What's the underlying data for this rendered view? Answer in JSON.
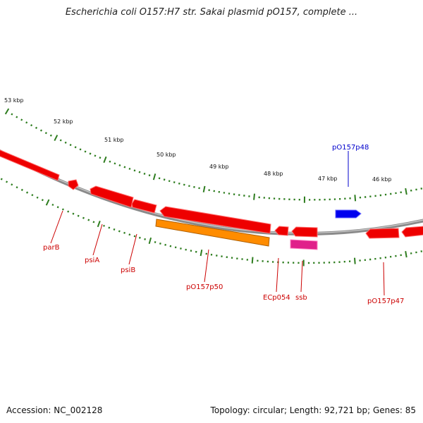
{
  "title": "Escherichia coli O157:H7 str. Sakai plasmid pO157, complete ...",
  "footer": {
    "accession": "Accession: NC_002128",
    "summary": "Topology: circular; Length: 92,721 bp; Genes: 85"
  },
  "colors": {
    "backbone": "#8a8a8a",
    "tick": "#2e7d1f",
    "gene_red": "#ee0000",
    "gene_orange": "#ff8c00",
    "gene_pink": "#e0208a",
    "gene_blue": "#0000ee",
    "label_red": "#cc0000",
    "label_blue": "#0000cc"
  },
  "scale": {
    "labels": [
      "53 kbp",
      "52 kbp",
      "51 kbp",
      "50 kbp",
      "49 kbp",
      "48 kbp",
      "47 kbp",
      "46 kbp"
    ]
  },
  "genes": [
    {
      "name": "parB",
      "color": "red"
    },
    {
      "name": "psiA",
      "color": "red"
    },
    {
      "name": "psiB",
      "color": "red"
    },
    {
      "name": "pO157p50",
      "color": "orange"
    },
    {
      "name": "ECp054",
      "color": "red"
    },
    {
      "name": "ssb",
      "color": "pink"
    },
    {
      "name": "pO157p47",
      "color": "red"
    },
    {
      "name": "pO157p48",
      "color": "blue"
    }
  ]
}
